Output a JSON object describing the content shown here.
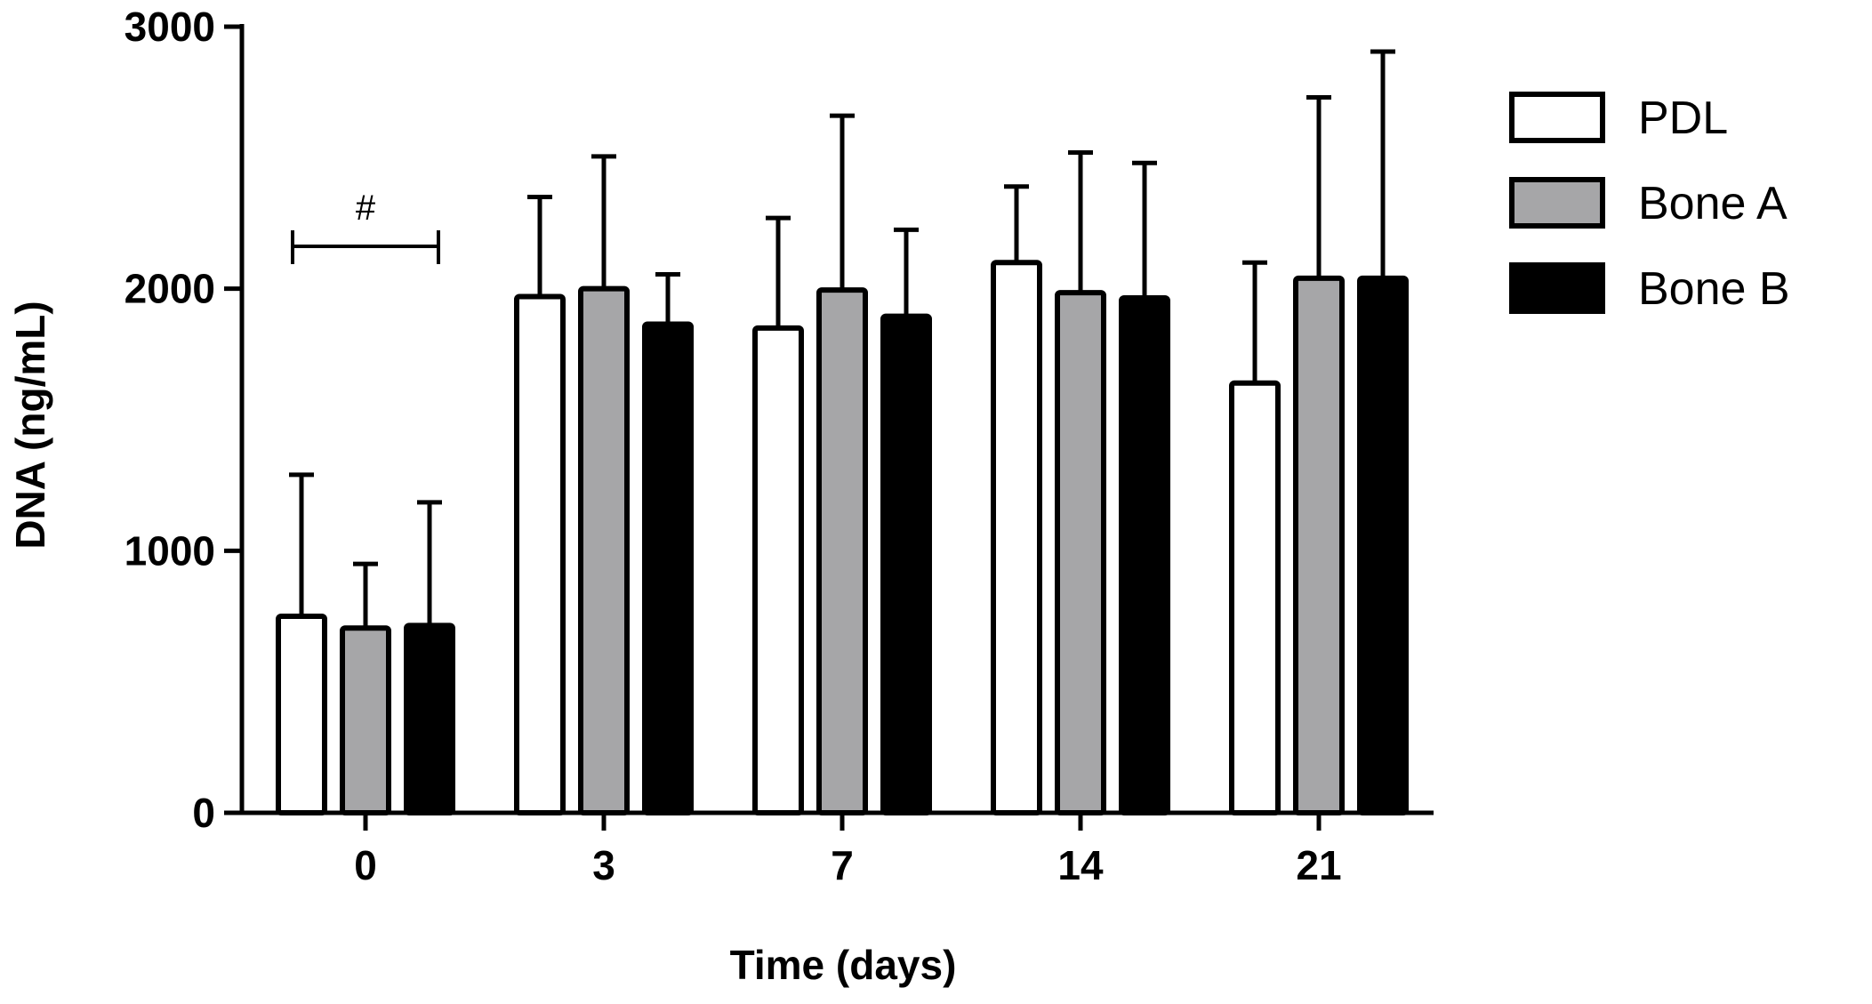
{
  "chart_data": {
    "type": "bar",
    "xlabel": "Time (days)",
    "ylabel": "DNA (ng/mL)",
    "ylim": [
      0,
      3000
    ],
    "yticks": [
      0,
      1000,
      2000,
      3000
    ],
    "categories": [
      "0",
      "3",
      "7",
      "14",
      "21"
    ],
    "legend_position": "right",
    "series": [
      {
        "name": "PDL",
        "fill": "#ffffff",
        "values": [
          750,
          1970,
          1850,
          2100,
          1640
        ],
        "errors": [
          540,
          380,
          420,
          290,
          460
        ]
      },
      {
        "name": "Bone A",
        "fill": "#a6a6a8",
        "values": [
          705,
          2000,
          1995,
          1985,
          2040
        ],
        "errors": [
          245,
          505,
          665,
          535,
          690
        ]
      },
      {
        "name": "Bone B",
        "fill": "#000000",
        "values": [
          715,
          1865,
          1895,
          1965,
          2040
        ],
        "errors": [
          470,
          190,
          330,
          515,
          865
        ]
      }
    ],
    "annotations": [
      {
        "label": "#",
        "category": "0",
        "type": "bracket"
      }
    ]
  }
}
